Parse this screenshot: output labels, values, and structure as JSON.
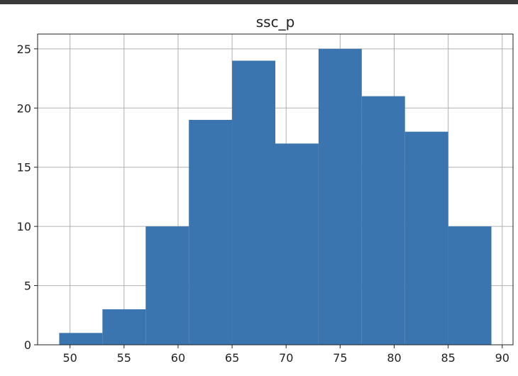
{
  "chart_data": {
    "type": "bar",
    "title": "ssc_p",
    "xlabel": "",
    "ylabel": "",
    "bins": [
      {
        "x0": 49.0,
        "x1": 53.0,
        "count": 1
      },
      {
        "x0": 53.0,
        "x1": 57.0,
        "count": 3
      },
      {
        "x0": 57.0,
        "x1": 61.0,
        "count": 10
      },
      {
        "x0": 61.0,
        "x1": 65.0,
        "count": 19
      },
      {
        "x0": 65.0,
        "x1": 69.0,
        "count": 24
      },
      {
        "x0": 69.0,
        "x1": 73.0,
        "count": 17
      },
      {
        "x0": 73.0,
        "x1": 77.0,
        "count": 25
      },
      {
        "x0": 77.0,
        "x1": 81.0,
        "count": 21
      },
      {
        "x0": 81.0,
        "x1": 85.0,
        "count": 18
      },
      {
        "x0": 85.0,
        "x1": 89.0,
        "count": 10
      }
    ],
    "xlim": [
      47.0,
      91.0
    ],
    "ylim": [
      0,
      26.25
    ],
    "xticks": [
      50,
      55,
      60,
      65,
      70,
      75,
      80,
      85,
      90
    ],
    "yticks": [
      0,
      5,
      10,
      15,
      20,
      25
    ],
    "grid": true,
    "bar_color": "#3b75af"
  }
}
